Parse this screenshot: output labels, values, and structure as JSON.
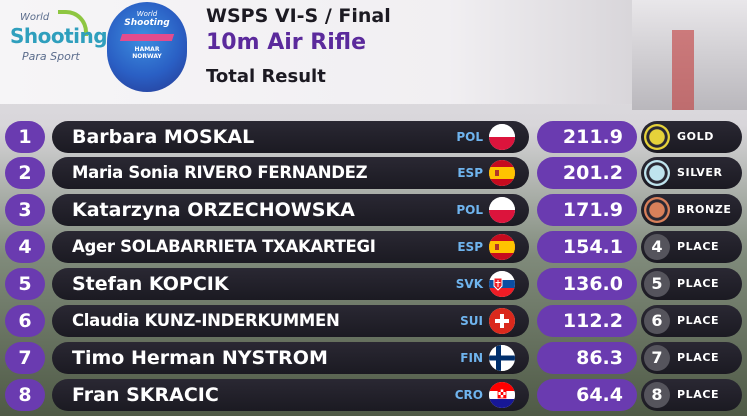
{
  "header": {
    "org_line1": "World",
    "org_line2": "Shooting",
    "org_line3": "Para Sport",
    "badge_line1": "World",
    "badge_line2": "Shooting",
    "badge_line3": "HAMAR",
    "badge_line4": "NORWAY",
    "event": "WSPS VI-S / Final",
    "discipline": "10m Air Rifle",
    "subtitle": "Total Result"
  },
  "colors": {
    "purple": "#6a3bb0",
    "dark_bar": "#1b1a22",
    "noc_blue": "#6fb4ee",
    "gold": "#e6d23a",
    "silver": "#bfe4ee",
    "bronze": "#d8805a"
  },
  "results": [
    {
      "rank": "1",
      "name": "Barbara MOSKAL",
      "noc": "POL",
      "flag": "pol-flag-icon",
      "score": "211.9",
      "place_mark": "",
      "place_label": "GOLD",
      "medal": "gold"
    },
    {
      "rank": "2",
      "name": "Maria Sonia RIVERO FERNANDEZ",
      "noc": "ESP",
      "flag": "esp-flag-icon",
      "score": "201.2",
      "place_mark": "",
      "place_label": "SILVER",
      "medal": "silver"
    },
    {
      "rank": "3",
      "name": "Katarzyna ORZECHOWSKA",
      "noc": "POL",
      "flag": "pol-flag-icon",
      "score": "171.9",
      "place_mark": "",
      "place_label": "BRONZE",
      "medal": "bronze"
    },
    {
      "rank": "4",
      "name": "Ager SOLABARRIETA TXAKARTEGI",
      "noc": "ESP",
      "flag": "esp-flag-icon",
      "score": "154.1",
      "place_mark": "4",
      "place_label": "PLACE",
      "medal": "none"
    },
    {
      "rank": "5",
      "name": "Stefan KOPCIK",
      "noc": "SVK",
      "flag": "svk-flag-icon",
      "score": "136.0",
      "place_mark": "5",
      "place_label": "PLACE",
      "medal": "none"
    },
    {
      "rank": "6",
      "name": "Claudia KUNZ-INDERKUMMEN",
      "noc": "SUI",
      "flag": "sui-flag-icon",
      "score": "112.2",
      "place_mark": "6",
      "place_label": "PLACE",
      "medal": "none"
    },
    {
      "rank": "7",
      "name": "Timo Herman NYSTROM",
      "noc": "FIN",
      "flag": "fin-flag-icon",
      "score": "86.3",
      "place_mark": "7",
      "place_label": "PLACE",
      "medal": "none"
    },
    {
      "rank": "8",
      "name": "Fran SKRACIC",
      "noc": "CRO",
      "flag": "cro-flag-icon",
      "score": "64.4",
      "place_mark": "8",
      "place_label": "PLACE",
      "medal": "none"
    }
  ]
}
